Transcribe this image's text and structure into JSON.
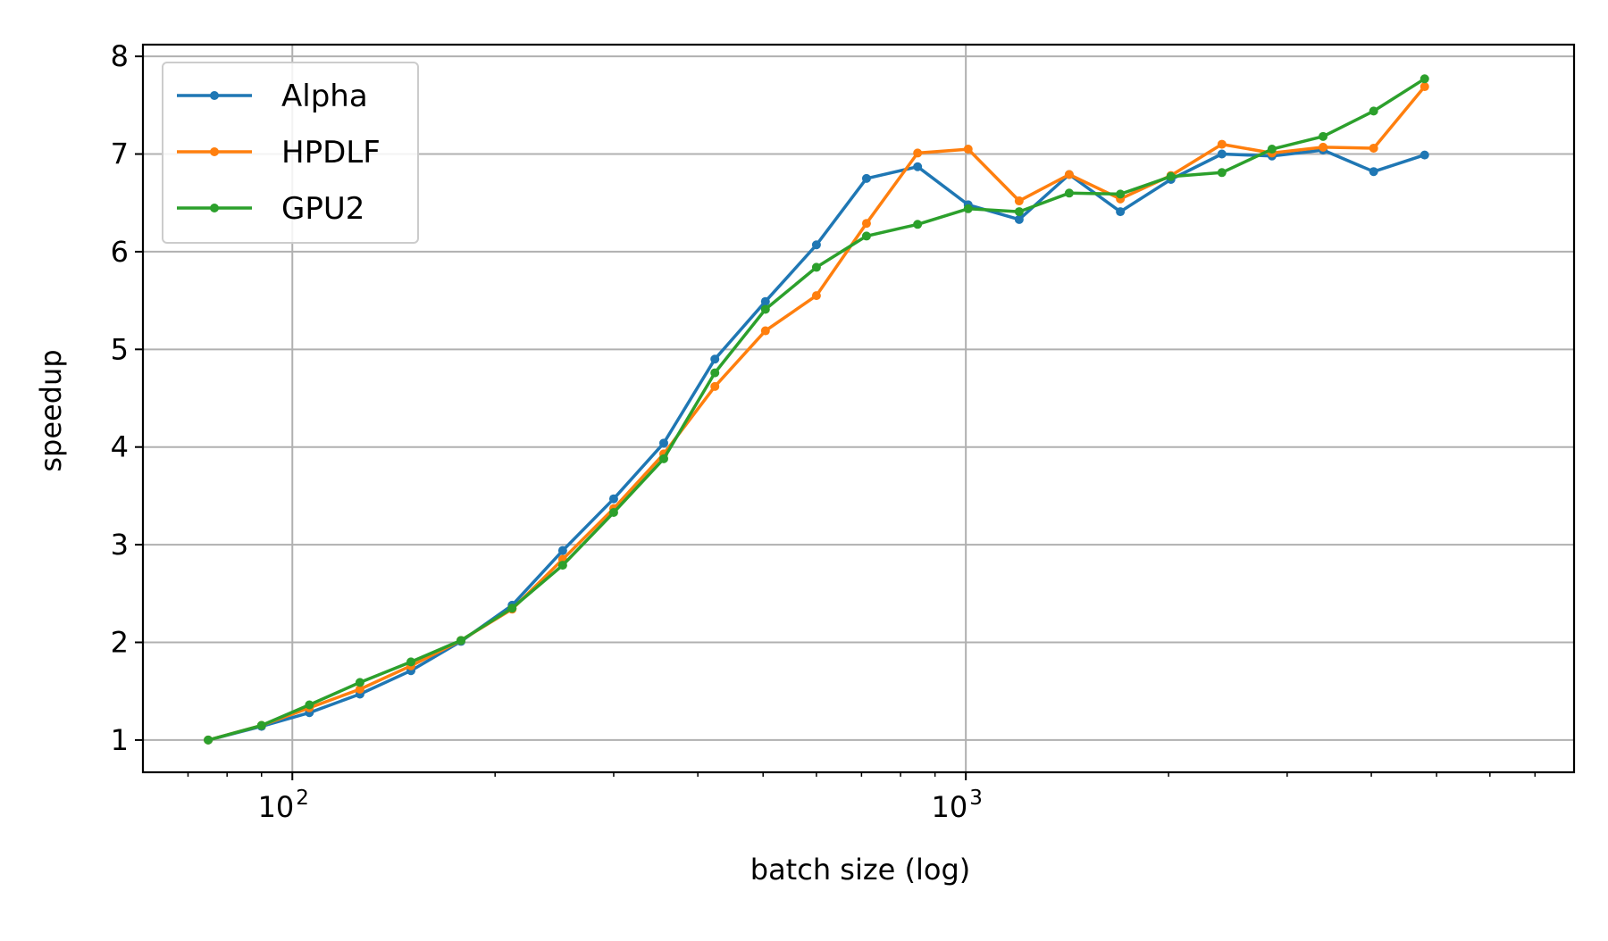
{
  "chart_data": {
    "type": "line",
    "title": "",
    "xlabel": "batch size (log)",
    "ylabel": "speedup",
    "x_scale": "log",
    "xlim": [
      60,
      8000
    ],
    "ylim": [
      0.67,
      8.12
    ],
    "x_major_ticks": [
      {
        "value": 100,
        "base": "10",
        "exp": "2"
      },
      {
        "value": 1000,
        "base": "10",
        "exp": "3"
      }
    ],
    "y_ticks": [
      1,
      2,
      3,
      4,
      5,
      6,
      7,
      8
    ],
    "y_tick_labels": [
      "1",
      "2",
      "3",
      "4",
      "5",
      "6",
      "7",
      "8"
    ],
    "grid": true,
    "legend_position": "top-left",
    "x": [
      75,
      90,
      106,
      126,
      150,
      178,
      212,
      252,
      300,
      356,
      424,
      504,
      600,
      712,
      848,
      1008,
      1200,
      1424,
      1696,
      2016,
      2400,
      2848,
      3392,
      4032,
      4800
    ],
    "series": [
      {
        "name": "Alpha",
        "color": "#1f77b4",
        "values": [
          1.0,
          1.14,
          1.28,
          1.47,
          1.71,
          2.01,
          2.38,
          2.94,
          3.47,
          4.04,
          4.9,
          5.49,
          6.07,
          6.75,
          6.87,
          6.48,
          6.33,
          6.79,
          6.41,
          6.74,
          7.0,
          6.98,
          7.04,
          6.82,
          6.99
        ]
      },
      {
        "name": "HPDLF",
        "color": "#ff7f0e",
        "values": [
          1.0,
          1.15,
          1.33,
          1.52,
          1.76,
          2.02,
          2.34,
          2.85,
          3.37,
          3.93,
          4.62,
          5.19,
          5.55,
          6.29,
          7.01,
          7.05,
          6.52,
          6.79,
          6.54,
          6.78,
          7.1,
          7.01,
          7.07,
          7.06,
          7.69
        ]
      },
      {
        "name": "GPU2",
        "color": "#2ca02c",
        "values": [
          1.0,
          1.15,
          1.36,
          1.59,
          1.8,
          2.02,
          2.35,
          2.79,
          3.33,
          3.88,
          4.76,
          5.41,
          5.84,
          6.16,
          6.28,
          6.44,
          6.41,
          6.6,
          6.59,
          6.77,
          6.81,
          7.05,
          7.18,
          7.44,
          7.77
        ]
      }
    ]
  }
}
